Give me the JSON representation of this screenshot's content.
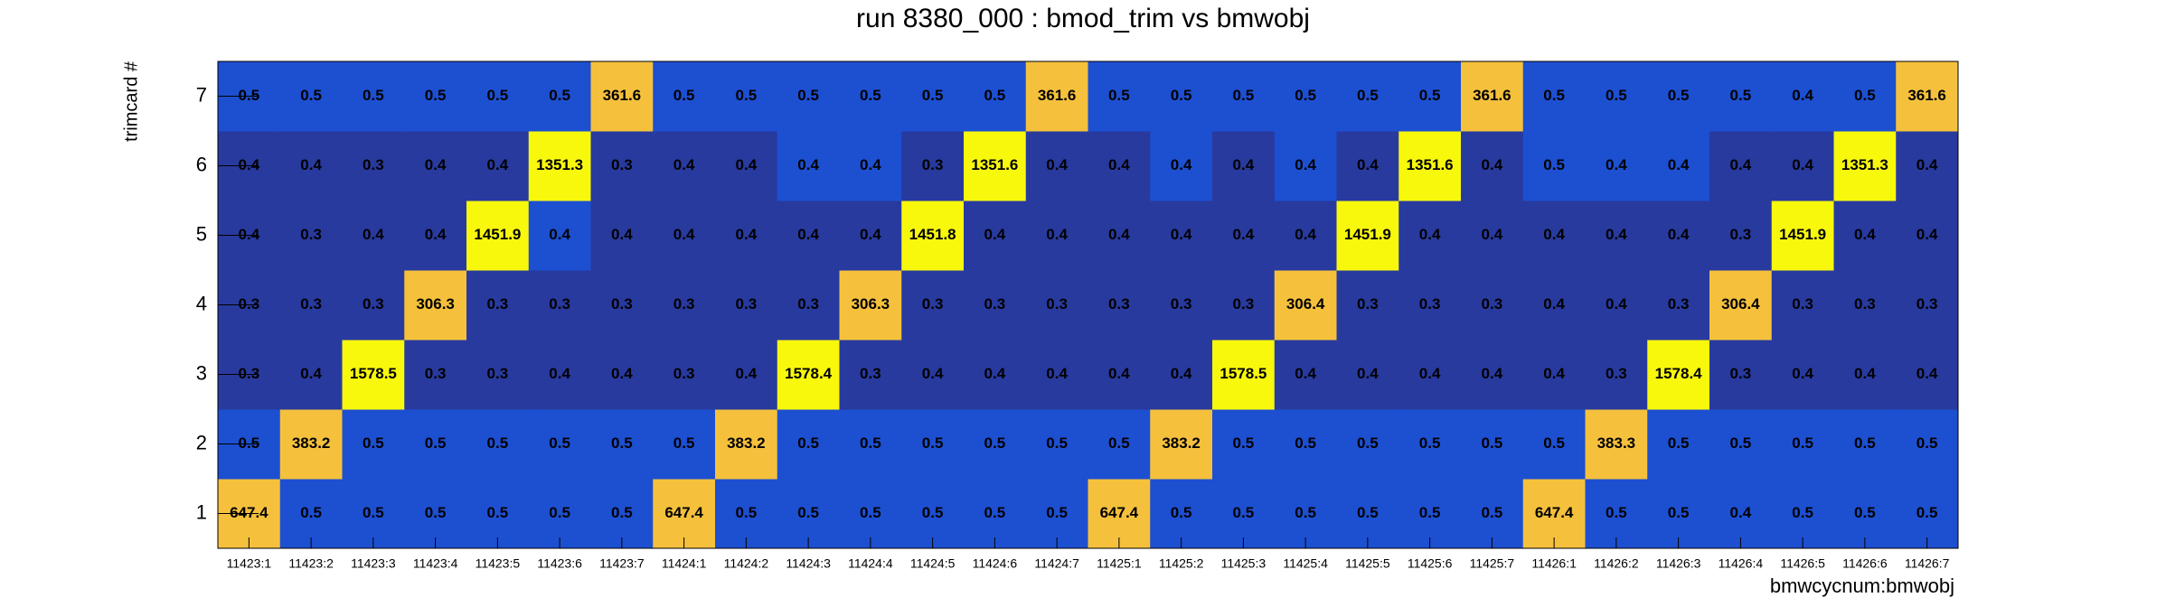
{
  "chart_data": {
    "type": "heatmap",
    "title": "run 8380_000 : bmod_trim vs bmwobj",
    "x_label": "bmwcycnum:bmwobj",
    "y_label": "trimcard #",
    "categories": [
      "11423:1",
      "11423:2",
      "11423:3",
      "11423:4",
      "11423:5",
      "11423:6",
      "11423:7",
      "11424:1",
      "11424:2",
      "11424:3",
      "11424:4",
      "11424:5",
      "11424:6",
      "11424:7",
      "11425:1",
      "11425:2",
      "11425:3",
      "11425:4",
      "11425:5",
      "11425:6",
      "11425:7",
      "11426:1",
      "11426:2",
      "11426:3",
      "11426:4",
      "11426:5",
      "11426:6",
      "11426:7"
    ],
    "ylim": [
      0.5,
      7.5
    ],
    "yticks": [
      1,
      2,
      3,
      4,
      5,
      6,
      7
    ],
    "z": [
      [
        647.4,
        0.5,
        0.5,
        0.5,
        0.5,
        0.5,
        0.5,
        647.4,
        0.5,
        0.5,
        0.5,
        0.5,
        0.5,
        0.5,
        647.4,
        0.5,
        0.5,
        0.5,
        0.5,
        0.5,
        0.5,
        647.4,
        0.5,
        0.5,
        0.4,
        0.5,
        0.5,
        0.5
      ],
      [
        0.5,
        383.2,
        0.5,
        0.5,
        0.5,
        0.5,
        0.5,
        0.5,
        383.2,
        0.5,
        0.5,
        0.5,
        0.5,
        0.5,
        0.5,
        383.2,
        0.5,
        0.5,
        0.5,
        0.5,
        0.5,
        0.5,
        383.3,
        0.5,
        0.5,
        0.5,
        0.5,
        0.5
      ],
      [
        0.3,
        0.4,
        1578.5,
        0.3,
        0.3,
        0.4,
        0.4,
        0.3,
        0.4,
        1578.4,
        0.3,
        0.4,
        0.4,
        0.4,
        0.4,
        0.4,
        1578.5,
        0.4,
        0.4,
        0.4,
        0.4,
        0.4,
        0.3,
        1578.4,
        0.3,
        0.4,
        0.4,
        0.4
      ],
      [
        0.3,
        0.3,
        0.3,
        306.3,
        0.3,
        0.3,
        0.3,
        0.3,
        0.3,
        0.3,
        306.3,
        0.3,
        0.3,
        0.3,
        0.3,
        0.3,
        0.3,
        306.4,
        0.3,
        0.3,
        0.3,
        0.4,
        0.4,
        0.3,
        306.4,
        0.3,
        0.3,
        0.3
      ],
      [
        0.4,
        0.3,
        0.4,
        0.4,
        1451.9,
        0.4,
        0.4,
        0.4,
        0.4,
        0.4,
        0.4,
        1451.8,
        0.4,
        0.4,
        0.4,
        0.4,
        0.4,
        0.4,
        1451.9,
        0.4,
        0.4,
        0.4,
        0.4,
        0.4,
        0.3,
        1451.9,
        0.4,
        0.4
      ],
      [
        0.4,
        0.4,
        0.3,
        0.4,
        0.4,
        1351.3,
        0.3,
        0.4,
        0.4,
        0.4,
        0.4,
        0.3,
        1351.6,
        0.4,
        0.4,
        0.4,
        0.4,
        0.4,
        0.4,
        1351.6,
        0.4,
        0.5,
        0.4,
        0.4,
        0.4,
        0.4,
        1351.3,
        0.4
      ],
      [
        0.5,
        0.5,
        0.5,
        0.5,
        0.5,
        0.5,
        361.6,
        0.5,
        0.5,
        0.5,
        0.5,
        0.5,
        0.5,
        361.6,
        0.5,
        0.5,
        0.5,
        0.5,
        0.5,
        0.5,
        361.6,
        0.5,
        0.5,
        0.5,
        0.5,
        0.4,
        0.5,
        361.6
      ]
    ],
    "colors": [
      [
        "#f5c13d",
        "#1d4fd1",
        "#1d4fd1",
        "#1d4fd1",
        "#1d4fd1",
        "#1d4fd1",
        "#1d4fd1",
        "#f5c13d",
        "#1d4fd1",
        "#1d4fd1",
        "#1d4fd1",
        "#1d4fd1",
        "#1d4fd1",
        "#1d4fd1",
        "#f5c13d",
        "#1d4fd1",
        "#1d4fd1",
        "#1d4fd1",
        "#1d4fd1",
        "#1d4fd1",
        "#1d4fd1",
        "#f5c13d",
        "#1d4fd1",
        "#1d4fd1",
        "#1d4fd1",
        "#1d4fd1",
        "#1d4fd1",
        "#1d4fd1"
      ],
      [
        "#1d4fd1",
        "#f5c13d",
        "#1d4fd1",
        "#1d4fd1",
        "#1d4fd1",
        "#1d4fd1",
        "#1d4fd1",
        "#1d4fd1",
        "#f5c13d",
        "#1d4fd1",
        "#1d4fd1",
        "#1d4fd1",
        "#1d4fd1",
        "#1d4fd1",
        "#1d4fd1",
        "#f5c13d",
        "#1d4fd1",
        "#1d4fd1",
        "#1d4fd1",
        "#1d4fd1",
        "#1d4fd1",
        "#1d4fd1",
        "#f5c13d",
        "#1d4fd1",
        "#1d4fd1",
        "#1d4fd1",
        "#1d4fd1",
        "#1d4fd1"
      ],
      [
        "#283a9e",
        "#283a9e",
        "#f8f80d",
        "#283a9e",
        "#283a9e",
        "#283a9e",
        "#283a9e",
        "#283a9e",
        "#283a9e",
        "#f8f80d",
        "#283a9e",
        "#283a9e",
        "#283a9e",
        "#283a9e",
        "#283a9e",
        "#283a9e",
        "#f8f80d",
        "#283a9e",
        "#283a9e",
        "#283a9e",
        "#283a9e",
        "#283a9e",
        "#283a9e",
        "#f8f80d",
        "#283a9e",
        "#283a9e",
        "#283a9e",
        "#283a9e"
      ],
      [
        "#283a9e",
        "#283a9e",
        "#283a9e",
        "#f5c13d",
        "#283a9e",
        "#283a9e",
        "#283a9e",
        "#283a9e",
        "#283a9e",
        "#283a9e",
        "#f5c13d",
        "#283a9e",
        "#283a9e",
        "#283a9e",
        "#283a9e",
        "#283a9e",
        "#283a9e",
        "#f5c13d",
        "#283a9e",
        "#283a9e",
        "#283a9e",
        "#283a9e",
        "#283a9e",
        "#283a9e",
        "#f5c13d",
        "#283a9e",
        "#283a9e",
        "#283a9e"
      ],
      [
        "#283a9e",
        "#283a9e",
        "#283a9e",
        "#283a9e",
        "#f8f80d",
        "#1d4fd1",
        "#283a9e",
        "#283a9e",
        "#283a9e",
        "#283a9e",
        "#283a9e",
        "#f8f80d",
        "#283a9e",
        "#283a9e",
        "#283a9e",
        "#283a9e",
        "#283a9e",
        "#283a9e",
        "#f8f80d",
        "#283a9e",
        "#283a9e",
        "#283a9e",
        "#283a9e",
        "#283a9e",
        "#283a9e",
        "#f8f80d",
        "#283a9e",
        "#283a9e"
      ],
      [
        "#283a9e",
        "#283a9e",
        "#283a9e",
        "#283a9e",
        "#283a9e",
        "#f8f80d",
        "#283a9e",
        "#283a9e",
        "#283a9e",
        "#1d4fd1",
        "#1d4fd1",
        "#283a9e",
        "#f8f80d",
        "#283a9e",
        "#283a9e",
        "#1d4fd1",
        "#283a9e",
        "#1d4fd1",
        "#283a9e",
        "#f8f80d",
        "#283a9e",
        "#1d4fd1",
        "#1d4fd1",
        "#1d4fd1",
        "#283a9e",
        "#283a9e",
        "#f8f80d",
        "#283a9e"
      ],
      [
        "#1d4fd1",
        "#1d4fd1",
        "#1d4fd1",
        "#1d4fd1",
        "#1d4fd1",
        "#1d4fd1",
        "#f5c13d",
        "#1d4fd1",
        "#1d4fd1",
        "#1d4fd1",
        "#1d4fd1",
        "#1d4fd1",
        "#1d4fd1",
        "#f5c13d",
        "#1d4fd1",
        "#1d4fd1",
        "#1d4fd1",
        "#1d4fd1",
        "#1d4fd1",
        "#1d4fd1",
        "#f5c13d",
        "#1d4fd1",
        "#1d4fd1",
        "#1d4fd1",
        "#1d4fd1",
        "#1d4fd1",
        "#1d4fd1",
        "#f5c13d"
      ]
    ]
  }
}
